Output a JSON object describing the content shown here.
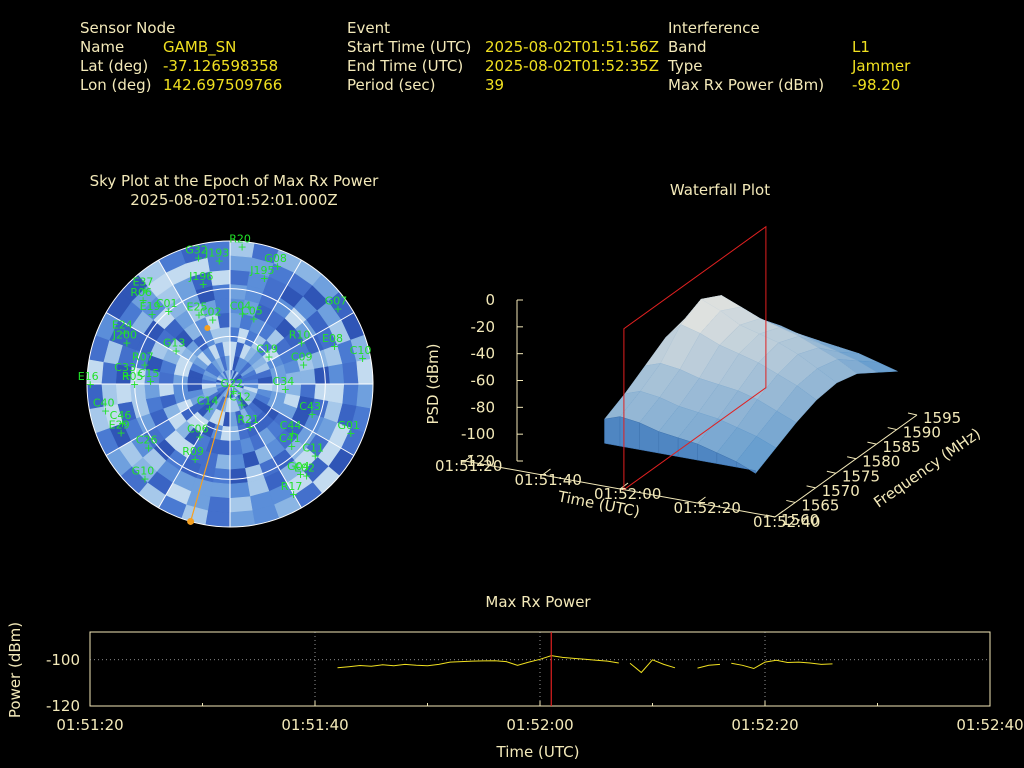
{
  "sensor": {
    "heading": "Sensor Node",
    "name_label": "Name",
    "name": "GAMB_SN",
    "lat_label": "Lat (deg)",
    "lat": "-37.126598358",
    "lon_label": "Lon (deg)",
    "lon": "142.697509766"
  },
  "event": {
    "heading": "Event",
    "start_label": "Start Time (UTC)",
    "start": "2025-08-02T01:51:56Z",
    "end_label": "End Time (UTC)",
    "end": "2025-08-02T01:52:35Z",
    "period_label": "Period (sec)",
    "period": "39"
  },
  "interference": {
    "heading": "Interference",
    "band_label": "Band",
    "band": "L1",
    "type_label": "Type",
    "type": "Jammer",
    "power_label": "Max Rx Power (dBm)",
    "power": "-98.20"
  },
  "colors": {
    "text": "#f3e9b9",
    "value": "#f0e020",
    "sat": "#22e22a",
    "marker": "#f5a020",
    "cursor": "#e02020"
  },
  "chart_data": [
    {
      "type": "scatter",
      "title": "Sky Plot at the Epoch of Max Rx Power",
      "subtitle": "2025-08-02T01:52:01.000Z",
      "polar": true,
      "rings_elevation_deg": [
        0,
        30,
        60,
        90
      ],
      "interference_direction": {
        "azimuth_deg": 196,
        "elevation_deg": 0
      },
      "satellites": [
        {
          "id": "R20",
          "az": 5,
          "el": 3
        },
        {
          "id": "G32",
          "az": 346,
          "el": 8
        },
        {
          "id": "J193",
          "az": 355,
          "el": 12
        },
        {
          "id": "G08",
          "az": 22,
          "el": 10
        },
        {
          "id": "J195",
          "az": 18,
          "el": 20
        },
        {
          "id": "J196",
          "az": 345,
          "el": 25
        },
        {
          "id": "E37",
          "az": 318,
          "el": 10
        },
        {
          "id": "R06",
          "az": 314,
          "el": 14
        },
        {
          "id": "G07",
          "az": 55,
          "el": 7
        },
        {
          "id": "E19",
          "az": 312,
          "el": 24
        },
        {
          "id": "C01",
          "az": 320,
          "el": 30
        },
        {
          "id": "E25",
          "az": 336,
          "el": 42
        },
        {
          "id": "C04",
          "az": 10,
          "el": 45
        },
        {
          "id": "C02",
          "az": 345,
          "el": 48
        },
        {
          "id": "C05",
          "az": 20,
          "el": 46
        },
        {
          "id": "R10",
          "az": 60,
          "el": 38
        },
        {
          "id": "E08",
          "az": 70,
          "el": 20
        },
        {
          "id": "C10",
          "az": 79,
          "el": 5
        },
        {
          "id": "J200",
          "az": 292,
          "el": 20
        },
        {
          "id": "E24",
          "az": 296,
          "el": 16
        },
        {
          "id": "C19",
          "az": 55,
          "el": 60
        },
        {
          "id": "G13",
          "az": 302,
          "el": 50
        },
        {
          "id": "C09",
          "az": 75,
          "el": 42
        },
        {
          "id": "R07",
          "az": 283,
          "el": 35
        },
        {
          "id": "E16",
          "az": 270,
          "el": 2
        },
        {
          "id": "C33",
          "az": 275,
          "el": 25
        },
        {
          "id": "R05",
          "az": 270,
          "el": 30
        },
        {
          "id": "C15",
          "az": 272,
          "el": 40
        },
        {
          "id": "C34",
          "az": 95,
          "el": 55
        },
        {
          "id": "C43",
          "az": 110,
          "el": 35
        },
        {
          "id": "G22",
          "az": 152,
          "el": 85
        },
        {
          "id": "C12",
          "az": 150,
          "el": 75
        },
        {
          "id": "C14",
          "az": 220,
          "el": 70
        },
        {
          "id": "R21",
          "az": 155,
          "el": 60
        },
        {
          "id": "C40",
          "az": 258,
          "el": 10
        },
        {
          "id": "C46",
          "az": 250,
          "el": 18
        },
        {
          "id": "E29",
          "az": 246,
          "el": 15
        },
        {
          "id": "C06",
          "az": 210,
          "el": 52
        },
        {
          "id": "R09",
          "az": 205,
          "el": 38
        },
        {
          "id": "C26",
          "az": 232,
          "el": 25
        },
        {
          "id": "G10",
          "az": 222,
          "el": 10
        },
        {
          "id": "C44",
          "az": 128,
          "el": 40
        },
        {
          "id": "C41",
          "az": 135,
          "el": 35
        },
        {
          "id": "C11",
          "az": 130,
          "el": 20
        },
        {
          "id": "G01",
          "az": 112,
          "el": 8
        },
        {
          "id": "E02",
          "az": 140,
          "el": 15
        },
        {
          "id": "G04",
          "az": 142,
          "el": 18
        },
        {
          "id": "R17",
          "az": 150,
          "el": 10
        }
      ]
    },
    {
      "type": "area",
      "title": "Waterfall Plot",
      "zlabel": "PSD (dBm)",
      "xlabel": "Time (UTC)",
      "ylabel": "Frequency (MHz)",
      "z_ticks": [
        0,
        -20,
        -40,
        -60,
        -80,
        -100,
        -120
      ],
      "time_ticks": [
        "01:51:20",
        "01:51:40",
        "01:52:00",
        "01:52:20",
        "01:52:40"
      ],
      "freq_ticks": [
        1560,
        1565,
        1570,
        1575,
        1580,
        1585,
        1590,
        1595
      ],
      "zlim": [
        -120,
        0
      ],
      "xlim": [
        "01:51:20",
        "01:52:40"
      ],
      "ylim": [
        1560,
        1595
      ],
      "cursor_time": "01:52:01",
      "surface": {
        "freq": [
          1560,
          1565,
          1570,
          1575,
          1580,
          1585,
          1590,
          1595
        ],
        "rows": [
          {
            "t": "01:51:56",
            "psd": [
              -70,
              -62,
              -52,
              -42,
              -38,
              -44,
              -60,
              -75
            ]
          },
          {
            "t": "01:52:00",
            "psd": [
              -66,
              -58,
              -48,
              -30,
              -22,
              -30,
              -52,
              -72
            ]
          },
          {
            "t": "01:52:05",
            "psd": [
              -68,
              -60,
              -50,
              -34,
              -28,
              -36,
              -56,
              -72
            ]
          },
          {
            "t": "01:52:10",
            "psd": [
              -72,
              -64,
              -54,
              -40,
              -36,
              -42,
              -60,
              -76
            ]
          },
          {
            "t": "01:52:15",
            "psd": [
              -74,
              -66,
              -56,
              -44,
              -40,
              -46,
              -62,
              -78
            ]
          },
          {
            "t": "01:52:20",
            "psd": [
              -76,
              -68,
              -58,
              -48,
              -44,
              -50,
              -66,
              -80
            ]
          },
          {
            "t": "01:52:25",
            "psd": [
              -80,
              -72,
              -62,
              -54,
              -50,
              -56,
              -70,
              -82
            ]
          },
          {
            "t": "01:52:30",
            "psd": [
              -84,
              -76,
              -68,
              -60,
              -58,
              -62,
              -74,
              -86
            ]
          },
          {
            "t": "01:52:35",
            "psd": [
              -90,
              -82,
              -74,
              -68,
              -66,
              -70,
              -80,
              -90
            ]
          }
        ]
      }
    },
    {
      "type": "line",
      "title": "Max Rx Power",
      "xlabel": "Time (UTC)",
      "ylabel": "Power (dBm)",
      "x_ticks": [
        "01:51:20",
        "01:51:40",
        "01:52:00",
        "01:52:20",
        "01:52:40"
      ],
      "y_ticks": [
        -100,
        -120
      ],
      "xlim": [
        "01:51:20",
        "01:52:40"
      ],
      "ylim": [
        -120,
        -88
      ],
      "grid": true,
      "cursor_time": "01:52:01",
      "series": [
        {
          "segment": [
            {
              "t": "01:51:42",
              "v": -103.5
            },
            {
              "t": "01:51:43",
              "v": -103.0
            },
            {
              "t": "01:51:44",
              "v": -102.5
            },
            {
              "t": "01:51:45",
              "v": -102.8
            },
            {
              "t": "01:51:46",
              "v": -102.2
            },
            {
              "t": "01:51:47",
              "v": -102.6
            },
            {
              "t": "01:51:48",
              "v": -102.0
            },
            {
              "t": "01:51:49",
              "v": -102.4
            },
            {
              "t": "01:51:50",
              "v": -102.6
            },
            {
              "t": "01:51:51",
              "v": -102.0
            },
            {
              "t": "01:51:52",
              "v": -101.0
            },
            {
              "t": "01:51:53",
              "v": -100.8
            },
            {
              "t": "01:51:54",
              "v": -100.6
            },
            {
              "t": "01:51:55",
              "v": -100.5
            },
            {
              "t": "01:51:56",
              "v": -100.4
            },
            {
              "t": "01:51:57",
              "v": -100.8
            },
            {
              "t": "01:51:58",
              "v": -102.4
            },
            {
              "t": "01:51:59",
              "v": -101.0
            },
            {
              "t": "01:52:00",
              "v": -99.8
            },
            {
              "t": "01:52:01",
              "v": -98.2
            },
            {
              "t": "01:52:02",
              "v": -99.0
            },
            {
              "t": "01:52:03",
              "v": -99.4
            },
            {
              "t": "01:52:04",
              "v": -99.8
            },
            {
              "t": "01:52:05",
              "v": -100.2
            },
            {
              "t": "01:52:06",
              "v": -100.6
            },
            {
              "t": "01:52:07",
              "v": -101.4
            }
          ]
        },
        {
          "segment": [
            {
              "t": "01:52:08",
              "v": -101.5
            },
            {
              "t": "01:52:09",
              "v": -105.5
            },
            {
              "t": "01:52:10",
              "v": -100.0
            },
            {
              "t": "01:52:11",
              "v": -102.0
            },
            {
              "t": "01:52:12",
              "v": -103.5
            }
          ]
        },
        {
          "segment": [
            {
              "t": "01:52:14",
              "v": -103.6
            },
            {
              "t": "01:52:15",
              "v": -102.4
            },
            {
              "t": "01:52:16",
              "v": -102.0
            }
          ]
        },
        {
          "segment": [
            {
              "t": "01:52:17",
              "v": -101.5
            },
            {
              "t": "01:52:18",
              "v": -102.4
            },
            {
              "t": "01:52:19",
              "v": -103.8
            },
            {
              "t": "01:52:20",
              "v": -101.0
            },
            {
              "t": "01:52:21",
              "v": -100.2
            },
            {
              "t": "01:52:22",
              "v": -101.2
            },
            {
              "t": "01:52:23",
              "v": -101.0
            },
            {
              "t": "01:52:24",
              "v": -101.4
            },
            {
              "t": "01:52:25",
              "v": -102.0
            },
            {
              "t": "01:52:26",
              "v": -101.8
            }
          ]
        }
      ]
    }
  ]
}
